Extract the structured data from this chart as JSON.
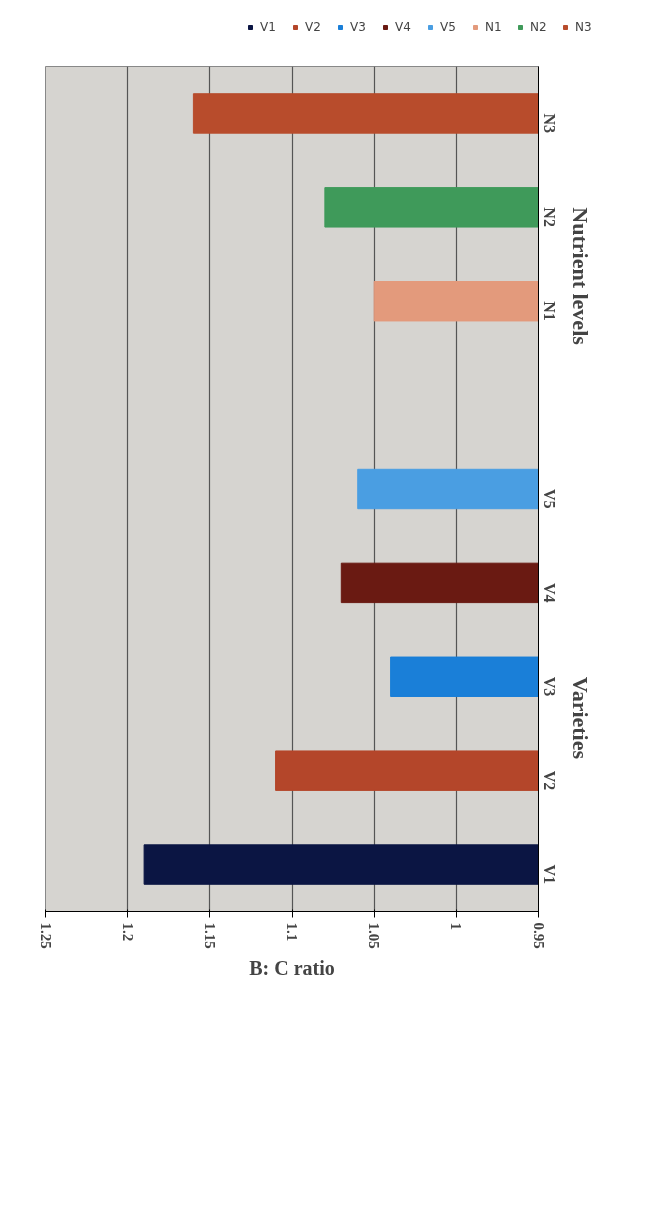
{
  "chart_data": {
    "type": "bar",
    "orientation": "horizontal",
    "xlabel": "B: C ratio",
    "categories": [
      "N3",
      "N2",
      "N1",
      null,
      "V5",
      "V4",
      "V3",
      "V2",
      "V1"
    ],
    "series": [
      {
        "name": "V1",
        "color": "#0b1543",
        "values": [
          null,
          null,
          null,
          null,
          null,
          null,
          null,
          null,
          1.19
        ]
      },
      {
        "name": "V2",
        "color": "#b4462a",
        "values": [
          null,
          null,
          null,
          null,
          null,
          null,
          null,
          1.11,
          null
        ]
      },
      {
        "name": "V3",
        "color": "#1a7fd8",
        "values": [
          null,
          null,
          null,
          null,
          null,
          null,
          1.04,
          null,
          null
        ]
      },
      {
        "name": "V4",
        "color": "#6a1a12",
        "values": [
          null,
          null,
          null,
          null,
          null,
          1.07,
          null,
          null,
          null
        ]
      },
      {
        "name": "V5",
        "color": "#4a9ee2",
        "values": [
          null,
          null,
          null,
          null,
          1.06,
          null,
          null,
          null,
          null
        ]
      },
      {
        "name": "N1",
        "color": "#e39a7c",
        "values": [
          null,
          null,
          1.05,
          null,
          null,
          null,
          null,
          null,
          null
        ]
      },
      {
        "name": "N2",
        "color": "#3f9a5a",
        "values": [
          null,
          1.08,
          null,
          null,
          null,
          null,
          null,
          null,
          null
        ]
      },
      {
        "name": "N3",
        "color": "#b84c2c",
        "values": [
          1.16,
          null,
          null,
          null,
          null,
          null,
          null,
          null,
          null
        ]
      }
    ],
    "xlim": [
      1.25,
      0.95
    ],
    "xticks": [
      1.25,
      1.2,
      1.15,
      1.1,
      1.05,
      1,
      0.95
    ],
    "annotations": [
      "Nutrient levels",
      "Varieties"
    ],
    "grid": "x",
    "legend": "top right"
  }
}
